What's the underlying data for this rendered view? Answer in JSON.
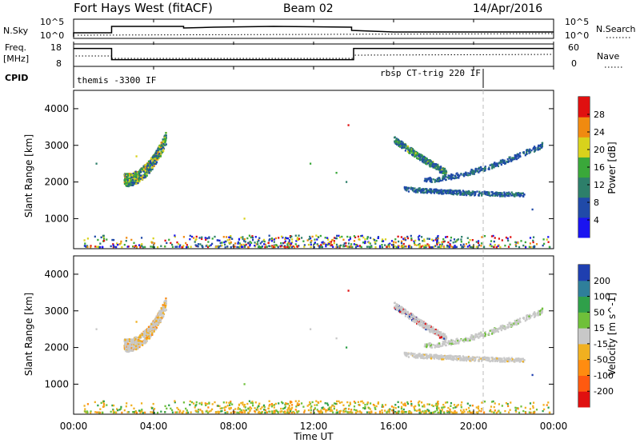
{
  "header": {
    "title": "Fort Hays West (fitACF)",
    "beam": "Beam 02",
    "date": "14/Apr/2016"
  },
  "noise_panel": {
    "left_label": "N.Sky",
    "right_label": "N.Search",
    "left_ticks": [
      "10^5",
      "10^0"
    ],
    "right_ticks": [
      "10^5",
      "10^0"
    ]
  },
  "freq_panel": {
    "left_label_line1": "Freq.",
    "left_label_line2": "[MHz]",
    "right_label": "Nave",
    "left_ticks": [
      "18",
      "8"
    ],
    "right_ticks": [
      "60",
      "0"
    ]
  },
  "cpid_panel": {
    "label": "CPID",
    "segments": [
      "themis -3300 IF",
      "rbsp CT-trig 220 IF"
    ]
  },
  "x_axis": {
    "label": "Time UT",
    "ticks": [
      "00:00",
      "04:00",
      "08:00",
      "12:00",
      "16:00",
      "20:00",
      "00:00"
    ]
  },
  "chart_data": [
    {
      "type": "heatmap",
      "name": "power",
      "ylabel": "Slant Range [km]",
      "yticks": [
        "4000",
        "3000",
        "2000",
        "1000"
      ],
      "ylim": [
        180,
        4500
      ],
      "xlim": [
        0,
        24
      ],
      "colorbar": {
        "label": "Power [dB]",
        "ticks": [
          "28",
          "24",
          "20",
          "16",
          "12",
          "8",
          "4"
        ],
        "range": [
          0,
          30
        ],
        "colors": [
          "#1a14f0",
          "#204aa8",
          "#2d7f6a",
          "#3aa83a",
          "#d8d21c",
          "#f08a10",
          "#e01010"
        ]
      },
      "echo_regions": [
        {
          "t_start": 2.5,
          "t_end": 4.6,
          "range_start": 2050,
          "range_end": 3250
        },
        {
          "t_start": 16.0,
          "t_end": 18.5,
          "range_start": 2000,
          "range_end": 3200
        },
        {
          "t_start": 17.0,
          "t_end": 23.5,
          "range_start": 1500,
          "range_end": 3000
        },
        {
          "t_start": 0.5,
          "t_end": 24.0,
          "range_start": 180,
          "range_end": 400
        }
      ]
    },
    {
      "type": "heatmap",
      "name": "velocity",
      "ylabel": "Slant Range [km]",
      "yticks": [
        "4000",
        "3000",
        "2000",
        "1000"
      ],
      "ylim": [
        180,
        4500
      ],
      "xlim": [
        0,
        24
      ],
      "colorbar": {
        "label": "Velocity [m s^-1]",
        "ticks": [
          "200",
          "100",
          "50",
          "15",
          "-15",
          "-50",
          "-100",
          "-200"
        ],
        "range": [
          -250,
          250
        ],
        "colors": [
          "#e01010",
          "#ff5a10",
          "#ff8c10",
          "#f0b020",
          "#c8c8c8",
          "#6fc03a",
          "#2fa04a",
          "#2f7f9a",
          "#1f3fb0"
        ]
      }
    },
    {
      "type": "line",
      "name": "noise",
      "ylim_label": [
        "10^0",
        "10^5"
      ]
    },
    {
      "type": "line",
      "name": "frequency",
      "steps": [
        {
          "t_start": 0.0,
          "t_end": 1.9,
          "mhz": 16
        },
        {
          "t_start": 1.9,
          "t_end": 14.0,
          "mhz": 11
        },
        {
          "t_start": 14.0,
          "t_end": 24.0,
          "mhz": 16
        }
      ]
    }
  ]
}
